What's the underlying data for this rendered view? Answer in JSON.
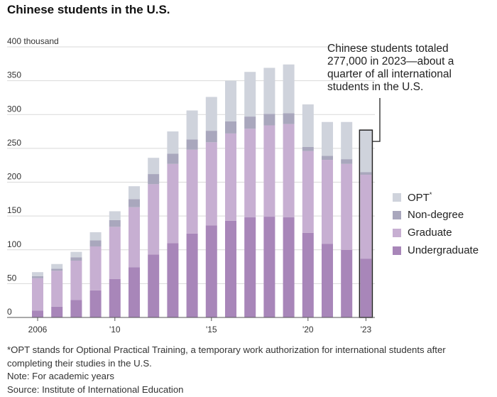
{
  "chart_data": {
    "type": "bar",
    "stacked": true,
    "title": "Chinese students in the U.S.",
    "y_unit_label": "400 thousand",
    "ylim": [
      0,
      400
    ],
    "yticks": [
      0,
      50,
      100,
      150,
      200,
      250,
      300,
      350,
      400
    ],
    "ytick_labels": [
      "0",
      "50",
      "100",
      "150",
      "200",
      "250",
      "300",
      "350",
      "400 thousand"
    ],
    "x_tick_labels": [
      {
        "year": 2006,
        "label": "2006"
      },
      {
        "year": 2010,
        "label": "'10"
      },
      {
        "year": 2015,
        "label": "'15"
      },
      {
        "year": 2020,
        "label": "'20"
      },
      {
        "year": 2023,
        "label": "'23"
      }
    ],
    "categories": [
      2006,
      2007,
      2008,
      2009,
      2010,
      2011,
      2012,
      2013,
      2014,
      2015,
      2016,
      2017,
      2018,
      2019,
      2020,
      2021,
      2022,
      2023
    ],
    "series": [
      {
        "name": "Undergraduate",
        "color": "#a886b9",
        "values": [
          10,
          16,
          26,
          40,
          57,
          74,
          93,
          110,
          124,
          136,
          143,
          148,
          149,
          148,
          125,
          109,
          100,
          87
        ]
      },
      {
        "name": "Graduate",
        "color": "#c7afd2",
        "values": [
          48,
          53,
          58,
          65,
          77,
          89,
          104,
          117,
          124,
          123,
          129,
          131,
          135,
          138,
          121,
          124,
          127,
          124
        ]
      },
      {
        "name": "Non-degree",
        "color": "#a9a7bd",
        "values": [
          3,
          3,
          5,
          9,
          10,
          12,
          15,
          15,
          15,
          17,
          18,
          18,
          17,
          16,
          6,
          6,
          7,
          4
        ]
      },
      {
        "name": "OPT*",
        "color": "#cfd3dc",
        "values": [
          6,
          7,
          8,
          12,
          13,
          19,
          24,
          33,
          43,
          50,
          60,
          66,
          68,
          72,
          63,
          50,
          55,
          62
        ]
      }
    ],
    "highlighted_year": 2023,
    "annotation": "Chinese students totaled 277,000 in 2023—about a quarter of all international students in the U.S."
  },
  "legend": [
    {
      "label": "OPT",
      "mark": "*",
      "color": "#cfd3dc"
    },
    {
      "label": "Non-degree",
      "mark": "",
      "color": "#a9a7bd"
    },
    {
      "label": "Graduate",
      "mark": "",
      "color": "#c7afd2"
    },
    {
      "label": "Undergraduate",
      "mark": "",
      "color": "#a886b9"
    }
  ],
  "notes": {
    "footnote": "*OPT stands for Optional Practical Training, a temporary work authorization for international students after completing their studies in the U.S.",
    "note": "Note: For academic years",
    "source": "Source: Institute of International Education"
  }
}
